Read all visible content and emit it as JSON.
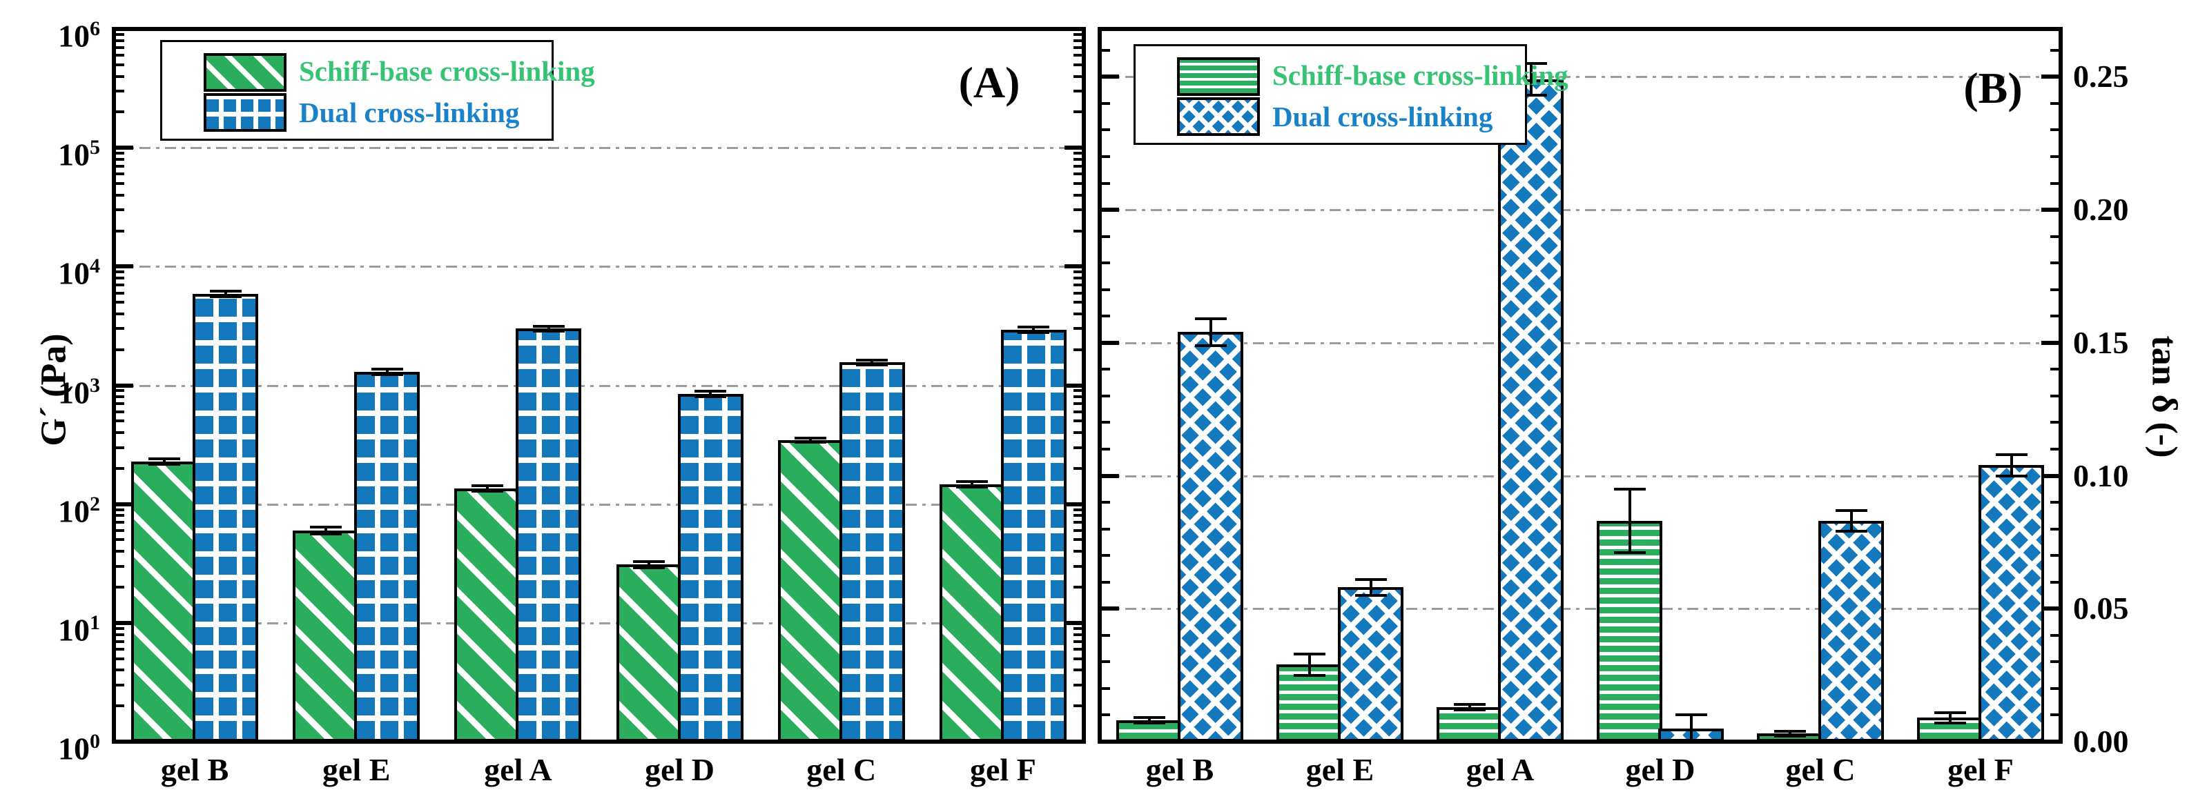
{
  "figure": {
    "background": "#ffffff",
    "colors": {
      "schiff_fill": "#2aad5c",
      "schiff_text": "#36c474",
      "dual_fill": "#1478bc",
      "dual_text": "#1a82c8",
      "gridline": "#9b9b9b",
      "axis": "#000000",
      "error_bar": "#000000"
    }
  },
  "chart_data": [
    {
      "type": "bar",
      "panel_label": "(A)",
      "categories": [
        "gel B",
        "gel E",
        "gel A",
        "gel D",
        "gel C",
        "gel F"
      ],
      "series": [
        {
          "name": "Schiff-base cross-linking",
          "pattern": "diagonal-stripes",
          "color": "#2aad5c",
          "values": [
            228,
            60,
            135,
            31,
            345,
            147
          ],
          "errors": [
            12,
            4,
            7,
            2,
            15,
            8
          ]
        },
        {
          "name": "Dual cross-linking",
          "pattern": "grid",
          "color": "#1478bc",
          "values": [
            5900,
            1300,
            3000,
            845,
            1560,
            2930
          ],
          "errors": [
            300,
            70,
            150,
            45,
            80,
            150
          ]
        }
      ],
      "ylabel": "G´ (Pa)",
      "xlabel": "",
      "yaxis": {
        "scale": "log",
        "ylim": [
          1,
          1000000
        ],
        "tick_base": "10",
        "tick_exponents": [
          0,
          1,
          2,
          3,
          4,
          5,
          6
        ],
        "gridline_exponents": [
          1,
          2,
          3,
          4,
          5
        ],
        "grid": "dash-dot horizontal",
        "side": "left"
      },
      "legend_position": "top-left-inside"
    },
    {
      "type": "bar",
      "panel_label": "(B)",
      "categories": [
        "gel B",
        "gel E",
        "gel A",
        "gel D",
        "gel C",
        "gel F"
      ],
      "series": [
        {
          "name": "Schiff-base cross-linking",
          "pattern": "horizontal-stripes",
          "color": "#2aad5c",
          "values": [
            0.008,
            0.029,
            0.013,
            0.083,
            0.003,
            0.009
          ],
          "errors": [
            0.001,
            0.004,
            0.001,
            0.012,
            0.001,
            0.002
          ]
        },
        {
          "name": "Dual cross-linking",
          "pattern": "diamond-crosshatch",
          "color": "#1478bc",
          "values": [
            0.154,
            0.058,
            0.249,
            0.005,
            0.083,
            0.104
          ],
          "errors": [
            0.005,
            0.003,
            0.006,
            0.005,
            0.004,
            0.004
          ]
        }
      ],
      "ylabel": "tan δ (-)",
      "xlabel": "",
      "yaxis": {
        "scale": "linear",
        "ylim": [
          0,
          0.268
        ],
        "tick_values": [
          0,
          0.05,
          0.1,
          0.15,
          0.2,
          0.25
        ],
        "tick_labels": [
          "0.00",
          "0.05",
          "0.10",
          "0.15",
          "0.20",
          "0.25"
        ],
        "minor_step": 0.01,
        "grid": "dash-dot horizontal",
        "side": "right"
      },
      "legend_position": "top-left-inside"
    }
  ]
}
